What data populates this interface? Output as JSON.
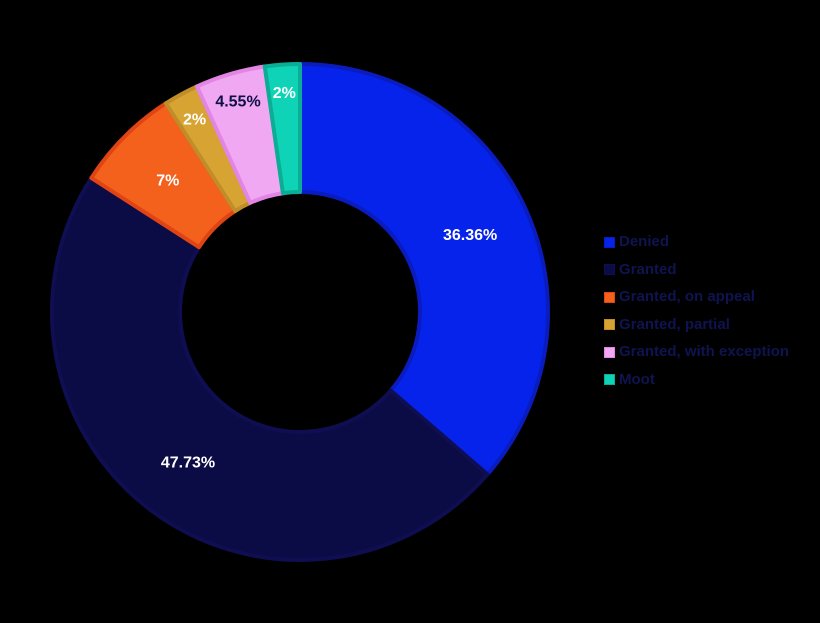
{
  "background_color": "#000000",
  "chart_data": {
    "type": "pie",
    "subtype": "donut",
    "title": "",
    "legend_position": "right",
    "start_angle_deg": 0,
    "direction": "clockwise",
    "slices": [
      {
        "label": "Denied",
        "value": 36.36,
        "display": "36.36%",
        "color": "#0623EC",
        "border_color": "#0A1CBE",
        "label_color": "#FFFFFF"
      },
      {
        "label": "Granted",
        "value": 47.73,
        "display": "47.73%",
        "color": "#0B0B45",
        "border_color": "#100E52",
        "label_color": "#FFFFFF"
      },
      {
        "label": "Granted, on appeal",
        "value": 6.82,
        "display": "7%",
        "color": "#F4611D",
        "border_color": "#E14414",
        "label_color": "#FFFFFF"
      },
      {
        "label": "Granted, partial",
        "value": 2.27,
        "display": "2%",
        "color": "#D7A434",
        "border_color": "#C08D28",
        "label_color": "#FFFFFF"
      },
      {
        "label": "Granted, with exception",
        "value": 4.55,
        "display": "4.55%",
        "color": "#F1A8F2",
        "border_color": "#E285E4",
        "label_color": "#0C1045"
      },
      {
        "label": "Moot",
        "value": 2.27,
        "display": "2%",
        "color": "#0ED3B6",
        "border_color": "#0BAD95",
        "label_color": "#FFFFFF"
      }
    ],
    "legend_text_color": "#0F1450"
  }
}
